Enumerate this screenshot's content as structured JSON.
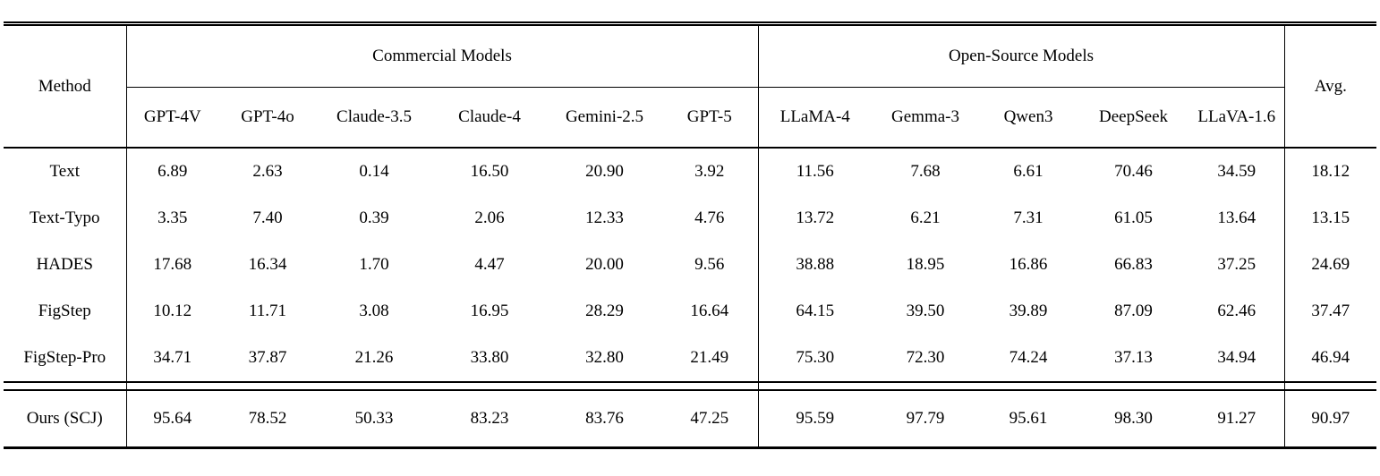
{
  "table": {
    "method_header": "Method",
    "avg_header": "Avg.",
    "groups": [
      {
        "label": "Commercial Models",
        "columns": [
          "GPT-4V",
          "GPT-4o",
          "Claude-3.5",
          "Claude-4",
          "Gemini-2.5",
          "GPT-5"
        ]
      },
      {
        "label": "Open-Source Models",
        "columns": [
          "LLaMA-4",
          "Gemma-3",
          "Qwen3",
          "DeepSeek",
          "LLaVA-1.6"
        ]
      }
    ],
    "rows": [
      {
        "method": "Text",
        "values": [
          "6.89",
          "2.63",
          "0.14",
          "16.50",
          "20.90",
          "3.92",
          "11.56",
          "7.68",
          "6.61",
          "70.46",
          "34.59"
        ],
        "avg": "18.12"
      },
      {
        "method": "Text-Typo",
        "values": [
          "3.35",
          "7.40",
          "0.39",
          "2.06",
          "12.33",
          "4.76",
          "13.72",
          "6.21",
          "7.31",
          "61.05",
          "13.64"
        ],
        "avg": "13.15"
      },
      {
        "method": "HADES",
        "values": [
          "17.68",
          "16.34",
          "1.70",
          "4.47",
          "20.00",
          "9.56",
          "38.88",
          "18.95",
          "16.86",
          "66.83",
          "37.25"
        ],
        "avg": "24.69"
      },
      {
        "method": "FigStep",
        "values": [
          "10.12",
          "11.71",
          "3.08",
          "16.95",
          "28.29",
          "16.64",
          "64.15",
          "39.50",
          "39.89",
          "87.09",
          "62.46"
        ],
        "avg": "37.47"
      },
      {
        "method": "FigStep-Pro",
        "values": [
          "34.71",
          "37.87",
          "21.26",
          "33.80",
          "32.80",
          "21.49",
          "75.30",
          "72.30",
          "74.24",
          "37.13",
          "34.94"
        ],
        "avg": "46.94"
      }
    ],
    "ours_row": {
      "method": "Ours (SCJ)",
      "values": [
        "95.64",
        "78.52",
        "50.33",
        "83.23",
        "83.76",
        "47.25",
        "95.59",
        "97.79",
        "95.61",
        "98.30",
        "91.27"
      ],
      "avg": "90.97"
    }
  },
  "colors": {
    "text": "#000000",
    "rule": "#000000",
    "background": "#ffffff"
  }
}
